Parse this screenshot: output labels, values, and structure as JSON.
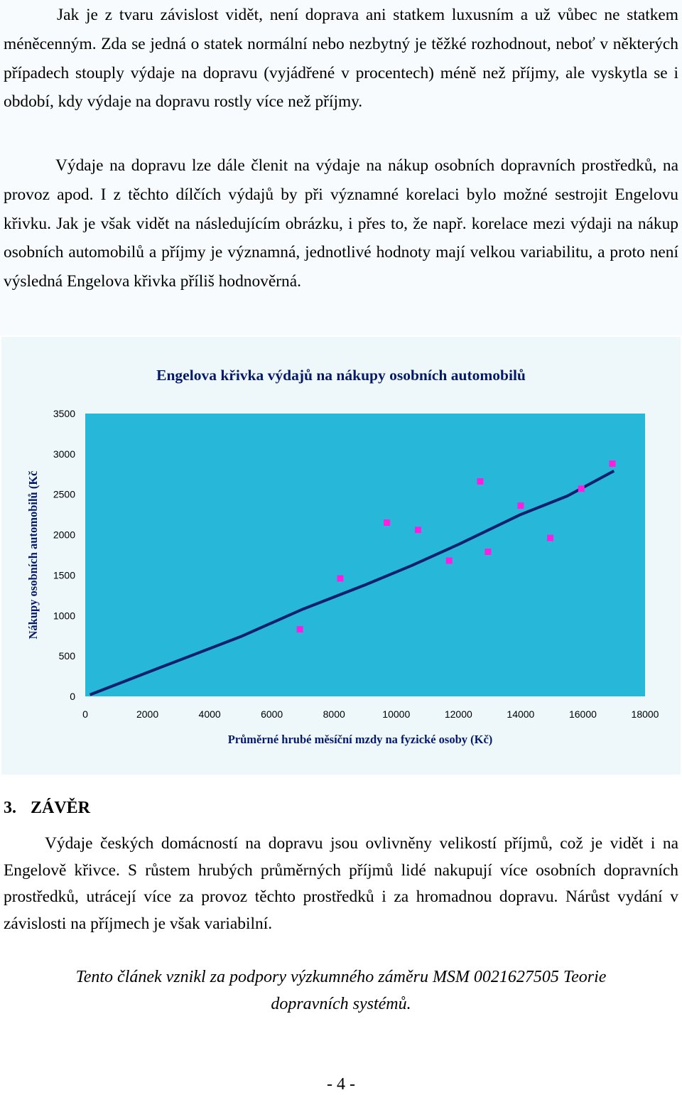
{
  "paragraphs": {
    "p1": "Jak je z tvaru závislost vidět, není doprava ani statkem luxusním a už vůbec ne statkem méněcenným. Zda se jedná o statek normální nebo nezbytný je těžké rozhodnout, neboť v některých případech stouply výdaje na dopravu (vyjádřené v procentech) méně než příjmy, ale vyskytla se i období, kdy výdaje na dopravu rostly více než příjmy.",
    "p2": "Výdaje na dopravu lze dále členit na výdaje na nákup osobních dopravních prostředků, na provoz apod. I z těchto dílčích výdajů by při významné korelaci bylo možné sestrojit Engelovu křivku. Jak je však vidět na následujícím obrázku, i přes to, že např. korelace mezi výdaji na nákup osobních automobilů a příjmy je významná, jednotlivé hodnoty mají velkou variabilitu, a proto není výsledná Engelova křivka příliš hodnověrná.",
    "p3": "Výdaje českých domácností na dopravu jsou ovlivněny velikostí příjmů, což je vidět i na Engelově křivce. S růstem hrubých průměrných příjmů lidé nakupují více osobních dopravních prostředků, utrácejí více za provoz těchto prostředků i za hromadnou dopravu. Nárůst vydání v závislosti na příjmech je však variabilní."
  },
  "section": {
    "number": "3.",
    "title": "ZÁVĚR"
  },
  "acknowledgement": "Tento článek vznikl za podpory výzkumného záměru MSM 0021627505 Teorie dopravních systémů.",
  "page_number": "- 4 -",
  "colors": {
    "plot_bg": "#27b8d9",
    "trend_line": "#0b1f6e",
    "points": "#ff1ee0",
    "title_text": "#05196b"
  },
  "chart_data": {
    "type": "scatter",
    "title": "Engelova křivka výdajů na nákupy osobních automobilů",
    "xlabel": "Průměrné hrubé měsíční mzdy na fyzické osoby (Kč)",
    "ylabel": "Nákupy osobních automobilů (Kč",
    "xlim": [
      0,
      18000
    ],
    "ylim": [
      0,
      3500
    ],
    "x_ticks": [
      "0",
      "2000",
      "4000",
      "6000",
      "8000",
      "10000",
      "12000",
      "14000",
      "16000",
      "18000"
    ],
    "y_ticks": [
      "0",
      "500",
      "1000",
      "1500",
      "2000",
      "2500",
      "3000",
      "3500"
    ],
    "grid": false,
    "legend": "none",
    "points": [
      {
        "x": 6900,
        "y": 830
      },
      {
        "x": 8200,
        "y": 1460
      },
      {
        "x": 9700,
        "y": 2150
      },
      {
        "x": 10700,
        "y": 2060
      },
      {
        "x": 11700,
        "y": 1680
      },
      {
        "x": 12700,
        "y": 2660
      },
      {
        "x": 12950,
        "y": 1790
      },
      {
        "x": 14000,
        "y": 2360
      },
      {
        "x": 14950,
        "y": 1960
      },
      {
        "x": 15950,
        "y": 2570
      },
      {
        "x": 16950,
        "y": 2880
      }
    ],
    "trendline": [
      {
        "x": 150,
        "y": 20
      },
      {
        "x": 2500,
        "y": 370
      },
      {
        "x": 5000,
        "y": 740
      },
      {
        "x": 7000,
        "y": 1080
      },
      {
        "x": 9000,
        "y": 1380
      },
      {
        "x": 10500,
        "y": 1620
      },
      {
        "x": 12000,
        "y": 1880
      },
      {
        "x": 14000,
        "y": 2250
      },
      {
        "x": 15500,
        "y": 2480
      },
      {
        "x": 17000,
        "y": 2790
      }
    ]
  }
}
